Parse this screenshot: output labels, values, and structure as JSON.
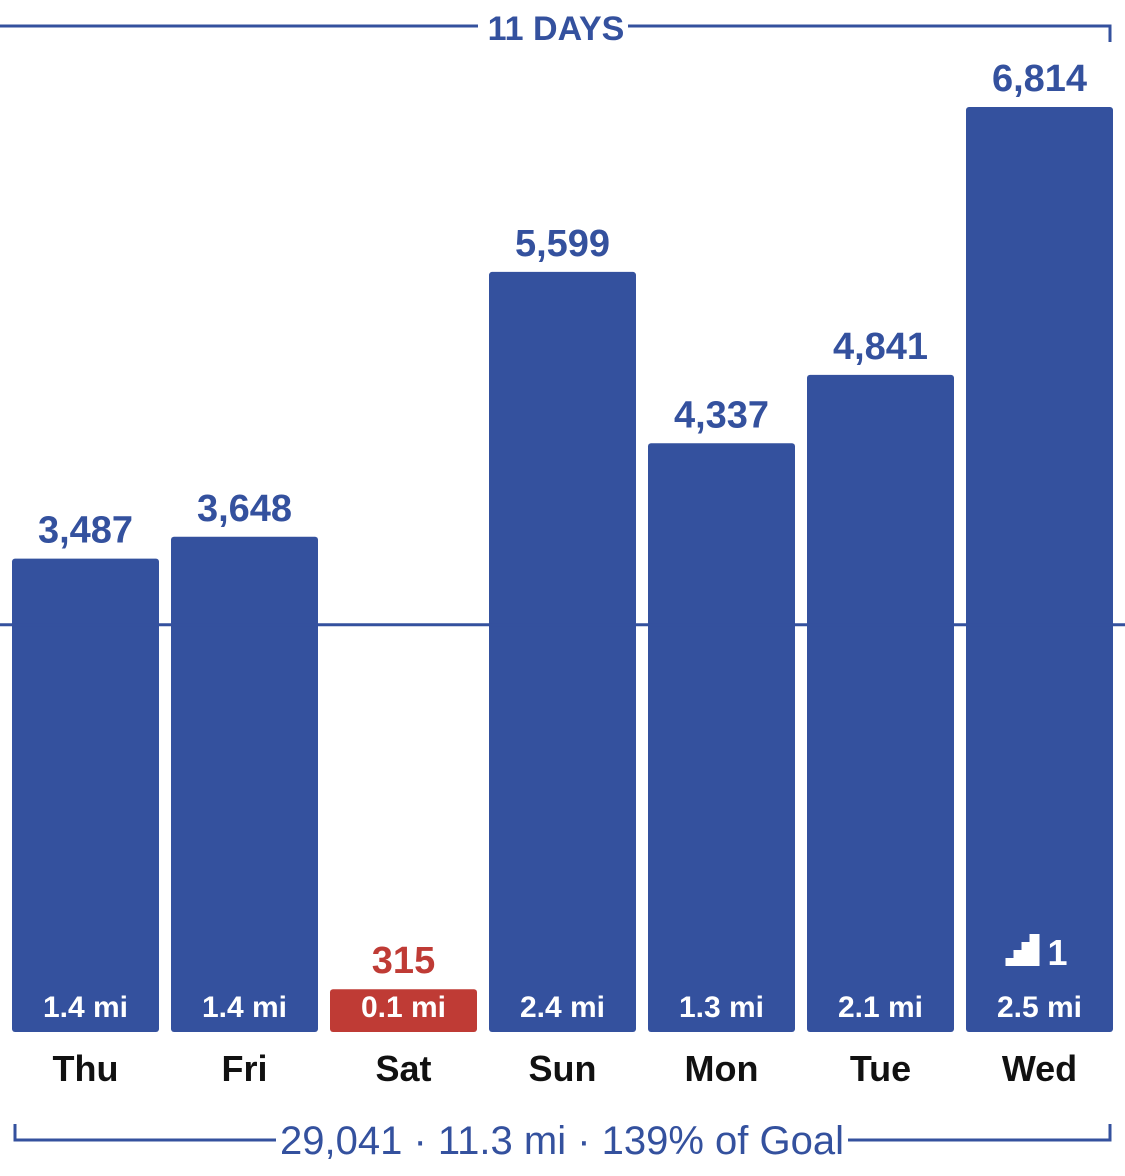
{
  "colors": {
    "bar": "#34519e",
    "below_goal": "#bf3b35",
    "text_dark": "#111111",
    "label_on_bar": "#ffffff"
  },
  "header": {
    "label": "11 DAYS"
  },
  "footer": {
    "summary": "29,041 · 11.3 mi · 139% of Goal"
  },
  "chart_data": {
    "type": "bar",
    "categories": [
      "Thu",
      "Fri",
      "Sat",
      "Sun",
      "Mon",
      "Tue",
      "Wed"
    ],
    "values": [
      3487,
      3648,
      315,
      5599,
      4337,
      4841,
      6814
    ],
    "value_labels": [
      "3,487",
      "3,648",
      "315",
      "5,599",
      "4,337",
      "4,841",
      "6,814"
    ],
    "distance_labels": [
      "1.4 mi",
      "1.4 mi",
      "0.1 mi",
      "2.4 mi",
      "1.3 mi",
      "2.1 mi",
      "2.5 mi"
    ],
    "below_goal": [
      false,
      false,
      true,
      false,
      false,
      false,
      false
    ],
    "goal": 3000,
    "flights": {
      "day": "Wed",
      "value": "1",
      "icon": "stairs-icon"
    },
    "ylim": [
      0,
      7500
    ],
    "grid": false,
    "legend": "none"
  }
}
